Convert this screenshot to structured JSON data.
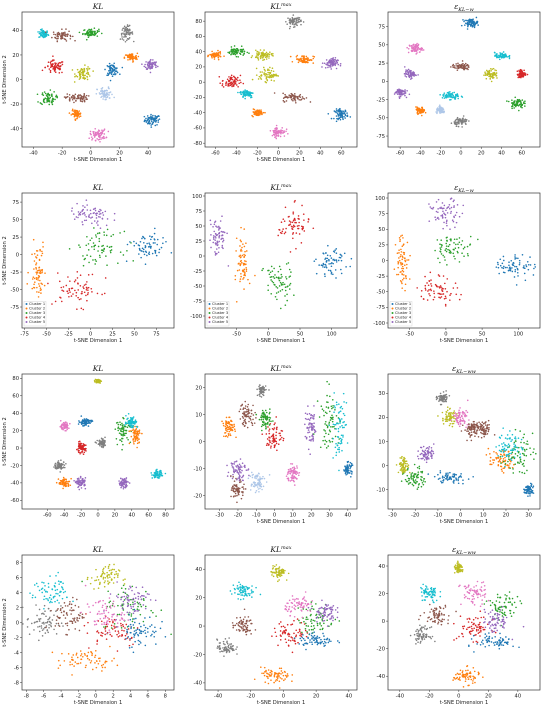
{
  "colors": [
    "#1f77b4",
    "#ff7f0e",
    "#2ca02c",
    "#d62728",
    "#9467bd",
    "#8c564b",
    "#e377c2",
    "#7f7f7f",
    "#bcbd22",
    "#17becf",
    "#aec7e8",
    "#ffbb78"
  ],
  "chart_data": [
    {
      "type": "scatter",
      "title": "KL",
      "xlabel": "t-SNE Dimension 1",
      "ylabel": "t-SNE Dimension 2",
      "xlim": [
        -48,
        58
      ],
      "ylim": [
        -55,
        55
      ],
      "xticks": [
        -40,
        -20,
        0,
        20,
        40
      ],
      "yticks": [
        -40,
        -20,
        0,
        20,
        40
      ],
      "legend": [],
      "legend_position": "none",
      "grid": false,
      "clusters": [
        [
          43,
          -33,
          5,
          4,
          0
        ],
        [
          -33,
          37,
          3,
          3,
          9
        ],
        [
          -20,
          36,
          6,
          4,
          5
        ],
        [
          0,
          38,
          5,
          3,
          2
        ],
        [
          25,
          38,
          4,
          5,
          7
        ],
        [
          -25,
          10,
          6,
          5,
          3
        ],
        [
          -5,
          5,
          5,
          5,
          8
        ],
        [
          15,
          8,
          4,
          4,
          0
        ],
        [
          28,
          18,
          4,
          3,
          1
        ],
        [
          42,
          12,
          4,
          4,
          4
        ],
        [
          -30,
          -15,
          5,
          5,
          2
        ],
        [
          -10,
          -15,
          7,
          3,
          5
        ],
        [
          10,
          -12,
          5,
          5,
          10
        ],
        [
          5,
          -45,
          5,
          4,
          6
        ],
        [
          -10,
          -28,
          3,
          3,
          1
        ]
      ]
    },
    {
      "type": "scatter",
      "title": "KL^max",
      "xlabel": "t-SNE Dimension 1",
      "ylabel": "",
      "xlim": [
        -70,
        75
      ],
      "ylim": [
        -85,
        92
      ],
      "xticks": [
        -60,
        -40,
        -20,
        0,
        20,
        40,
        60
      ],
      "yticks": [
        -80,
        -60,
        -40,
        -20,
        0,
        20,
        40,
        60,
        80
      ],
      "legend": [],
      "legend_position": "none",
      "grid": false,
      "clusters": [
        [
          60,
          -42,
          6,
          6,
          0
        ],
        [
          15,
          80,
          6,
          6,
          7
        ],
        [
          -40,
          40,
          8,
          5,
          2
        ],
        [
          -60,
          35,
          5,
          4,
          1
        ],
        [
          -15,
          35,
          8,
          5,
          8
        ],
        [
          25,
          30,
          8,
          5,
          1
        ],
        [
          50,
          25,
          6,
          6,
          4
        ],
        [
          -45,
          0,
          8,
          8,
          3
        ],
        [
          -10,
          10,
          8,
          8,
          8
        ],
        [
          -30,
          -15,
          6,
          5,
          9
        ],
        [
          15,
          -20,
          10,
          5,
          5
        ],
        [
          0,
          -65,
          6,
          6,
          6
        ],
        [
          -20,
          -40,
          5,
          4,
          1
        ]
      ]
    },
    {
      "type": "scatter",
      "title": "ε_KL−w",
      "xlabel": "",
      "ylabel": "",
      "xlim": [
        -72,
        78
      ],
      "ylim": [
        -90,
        95
      ],
      "xticks": [
        -60,
        -40,
        -20,
        0,
        20,
        40,
        60
      ],
      "yticks": [
        -75,
        -50,
        -25,
        0,
        25,
        50,
        75
      ],
      "legend": [],
      "legend_position": "none",
      "grid": false,
      "clusters": [
        [
          10,
          80,
          6,
          5,
          0
        ],
        [
          -45,
          45,
          6,
          6,
          6
        ],
        [
          -50,
          10,
          5,
          5,
          4
        ],
        [
          -60,
          -15,
          5,
          5,
          4
        ],
        [
          0,
          20,
          8,
          4,
          5
        ],
        [
          40,
          35,
          6,
          4,
          9
        ],
        [
          30,
          10,
          6,
          6,
          8
        ],
        [
          60,
          10,
          4,
          5,
          3
        ],
        [
          55,
          -30,
          6,
          6,
          2
        ],
        [
          -10,
          -20,
          8,
          5,
          9
        ],
        [
          -40,
          -40,
          4,
          4,
          1
        ],
        [
          0,
          -55,
          6,
          5,
          7
        ],
        [
          -20,
          -40,
          4,
          4,
          10
        ]
      ]
    },
    {
      "type": "scatter",
      "title": "KL",
      "xlabel": "t-SNE Dimension 1",
      "ylabel": "t-SNE Dimension 2",
      "xlim": [
        -78,
        95
      ],
      "ylim": [
        -105,
        88
      ],
      "xticks": [
        -75,
        -50,
        -25,
        0,
        25,
        50,
        75
      ],
      "yticks": [
        -75,
        -50,
        -25,
        0,
        25,
        50,
        75
      ],
      "legend": [
        "Cluster 1",
        "Cluster 2",
        "Cluster 3",
        "Cluster 4",
        "Cluster 5"
      ],
      "legend_position": "lower-left",
      "grid": false,
      "clusters": [
        [
          0,
          55,
          22,
          16,
          4
        ],
        [
          -60,
          -20,
          8,
          35,
          1
        ],
        [
          10,
          10,
          22,
          20,
          2
        ],
        [
          -15,
          -50,
          25,
          22,
          3
        ],
        [
          65,
          10,
          18,
          18,
          0
        ]
      ]
    },
    {
      "type": "scatter",
      "title": "KL^max",
      "xlabel": "t-SNE Dimension 1",
      "ylabel": "",
      "xlim": [
        -100,
        140
      ],
      "ylim": [
        -120,
        105
      ],
      "xticks": [
        -50,
        0,
        50,
        100
      ],
      "yticks": [
        -100,
        -75,
        -50,
        -25,
        0,
        25,
        50,
        75,
        100
      ],
      "legend": [
        "Cluster 1",
        "Cluster 2",
        "Cluster 3",
        "Cluster 4",
        "Cluster 5"
      ],
      "legend_position": "lower-left",
      "grid": false,
      "clusters": [
        [
          -80,
          30,
          12,
          28,
          4
        ],
        [
          -40,
          -10,
          8,
          45,
          1
        ],
        [
          40,
          50,
          22,
          28,
          3
        ],
        [
          15,
          -45,
          20,
          32,
          2
        ],
        [
          100,
          -10,
          22,
          20,
          0
        ]
      ]
    },
    {
      "type": "scatter",
      "title": "ε_KL−w",
      "xlabel": "t-SNE Dimension 1",
      "ylabel": "",
      "xlim": [
        -80,
        130
      ],
      "ylim": [
        -108,
        108
      ],
      "xticks": [
        -50,
        0,
        50,
        100
      ],
      "yticks": [
        -100,
        -75,
        -50,
        -25,
        0,
        25,
        50,
        75,
        100
      ],
      "legend": [
        "Cluster 1",
        "Cluster 2",
        "Cluster 3",
        "Cluster 4",
        "Cluster 5"
      ],
      "legend_position": "lower-left",
      "grid": false,
      "clusters": [
        [
          0,
          75,
          20,
          20,
          4
        ],
        [
          -60,
          0,
          8,
          38,
          1
        ],
        [
          10,
          20,
          25,
          18,
          2
        ],
        [
          -10,
          -45,
          25,
          20,
          3
        ],
        [
          95,
          -10,
          25,
          18,
          0
        ]
      ]
    },
    {
      "type": "scatter",
      "title": "KL",
      "xlabel": "",
      "ylabel": "t-SNE Dimension 2",
      "xlim": [
        -90,
        90
      ],
      "ylim": [
        -70,
        85
      ],
      "xticks": [
        -60,
        -40,
        -20,
        0,
        20,
        40,
        60,
        80
      ],
      "yticks": [
        -60,
        -40,
        -20,
        0,
        20,
        40,
        60,
        80
      ],
      "legend": [],
      "legend_position": "none",
      "grid": false,
      "clusters": [
        [
          0,
          77,
          3,
          2,
          8
        ],
        [
          -15,
          30,
          7,
          4,
          0
        ],
        [
          -40,
          25,
          5,
          4,
          6
        ],
        [
          -20,
          0,
          5,
          5,
          3
        ],
        [
          30,
          20,
          8,
          12,
          2
        ],
        [
          45,
          15,
          6,
          10,
          1
        ],
        [
          40,
          30,
          6,
          6,
          9
        ],
        [
          -45,
          -20,
          6,
          4,
          7
        ],
        [
          -40,
          -40,
          6,
          5,
          1
        ],
        [
          -20,
          -40,
          5,
          5,
          4
        ],
        [
          30,
          -40,
          5,
          5,
          4
        ],
        [
          70,
          -30,
          5,
          4,
          9
        ],
        [
          5,
          5,
          5,
          4,
          7
        ]
      ]
    },
    {
      "type": "scatter",
      "title": "KL^max",
      "xlabel": "t-SNE Dimension 1",
      "ylabel": "",
      "xlim": [
        -38,
        45
      ],
      "ylim": [
        -25,
        25
      ],
      "xticks": [
        -30,
        -20,
        -10,
        0,
        10,
        20,
        30,
        40
      ],
      "yticks": [
        -20,
        -10,
        0,
        10,
        20
      ],
      "legend": [],
      "legend_position": "none",
      "grid": false,
      "clusters": [
        [
          -7,
          19,
          2,
          2,
          7
        ],
        [
          -25,
          5,
          3,
          3,
          1
        ],
        [
          -15,
          10,
          4,
          4,
          5
        ],
        [
          0,
          2,
          4,
          5,
          3
        ],
        [
          -5,
          8,
          3,
          3,
          2
        ],
        [
          20,
          5,
          3,
          6,
          4
        ],
        [
          30,
          8,
          5,
          10,
          2
        ],
        [
          35,
          5,
          4,
          10,
          9
        ],
        [
          -20,
          -10,
          4,
          4,
          4
        ],
        [
          -10,
          -15,
          4,
          4,
          10
        ],
        [
          10,
          -12,
          3,
          3,
          6
        ],
        [
          -20,
          -18,
          3,
          3,
          5
        ],
        [
          40,
          -10,
          2,
          2,
          0
        ]
      ]
    },
    {
      "type": "scatter",
      "title": "ε_KL−ww",
      "xlabel": "t-SNE Dimension 1",
      "ylabel": "",
      "xlim": [
        -32,
        35
      ],
      "ylim": [
        -18,
        38
      ],
      "xticks": [
        -30,
        -20,
        -10,
        0,
        10,
        20,
        30
      ],
      "yticks": [
        -10,
        0,
        10,
        20,
        30
      ],
      "legend": [],
      "legend_position": "none",
      "grid": false,
      "clusters": [
        [
          -8,
          28,
          2,
          2,
          7
        ],
        [
          -5,
          20,
          3,
          3,
          8
        ],
        [
          0,
          20,
          3,
          3,
          6
        ],
        [
          5,
          15,
          3,
          3,
          5
        ],
        [
          -5,
          -5,
          7,
          2,
          0
        ],
        [
          18,
          2,
          5,
          4,
          1
        ],
        [
          25,
          5,
          6,
          7,
          2
        ],
        [
          22,
          8,
          5,
          6,
          9
        ],
        [
          -15,
          5,
          3,
          3,
          4
        ],
        [
          -20,
          -5,
          4,
          4,
          2
        ],
        [
          -25,
          0,
          2,
          3,
          8
        ],
        [
          30,
          -10,
          2,
          2,
          0
        ],
        [
          10,
          15,
          3,
          3,
          5
        ]
      ]
    },
    {
      "type": "scatter",
      "title": "KL",
      "xlabel": "t-SNE Dimension 1",
      "ylabel": "t-SNE Dimension 2",
      "xlim": [
        -8.5,
        9
      ],
      "ylim": [
        -9,
        9
      ],
      "xticks": [
        -8,
        -6,
        -4,
        -2,
        0,
        2,
        4,
        6,
        8
      ],
      "yticks": [
        -8,
        -6,
        -4,
        -2,
        0,
        2,
        4,
        6,
        8
      ],
      "legend": [],
      "legend_position": "none",
      "grid": false,
      "clusters": [
        [
          -5,
          4,
          2,
          2,
          9
        ],
        [
          1,
          6,
          1.5,
          1.5,
          8
        ],
        [
          -6,
          0,
          1.8,
          2,
          7
        ],
        [
          -3,
          1,
          1.5,
          2,
          5
        ],
        [
          2,
          -1,
          3,
          2,
          3
        ],
        [
          4,
          2,
          3,
          3,
          2
        ],
        [
          5,
          -1,
          2,
          2,
          0
        ],
        [
          4,
          3,
          2,
          2,
          4
        ],
        [
          -1,
          -5,
          3,
          1.2,
          1
        ],
        [
          1,
          1,
          2,
          2,
          6
        ]
      ]
    },
    {
      "type": "scatter",
      "title": "KL^max",
      "xlabel": "t-SNE Dimension 1",
      "ylabel": "",
      "xlim": [
        -48,
        45
      ],
      "ylim": [
        -45,
        50
      ],
      "xticks": [
        -40,
        -20,
        0,
        20,
        40
      ],
      "yticks": [
        -40,
        -20,
        0,
        20,
        40
      ],
      "legend": [],
      "legend_position": "none",
      "grid": false,
      "clusters": [
        [
          -3,
          38,
          4,
          4,
          8
        ],
        [
          -25,
          25,
          6,
          5,
          9
        ],
        [
          -25,
          0,
          6,
          6,
          5
        ],
        [
          -35,
          -15,
          5,
          5,
          7
        ],
        [
          5,
          -5,
          10,
          8,
          3
        ],
        [
          20,
          5,
          10,
          10,
          2
        ],
        [
          25,
          10,
          6,
          6,
          4
        ],
        [
          20,
          -10,
          10,
          5,
          0
        ],
        [
          -5,
          -35,
          8,
          5,
          1
        ],
        [
          10,
          15,
          8,
          6,
          6
        ]
      ]
    },
    {
      "type": "scatter",
      "title": "ε_KL−ww",
      "xlabel": "t-SNE Dimension 1",
      "ylabel": "",
      "xlim": [
        -48,
        55
      ],
      "ylim": [
        -50,
        48
      ],
      "xticks": [
        -40,
        -20,
        0,
        20,
        40
      ],
      "yticks": [
        -40,
        -20,
        0,
        20,
        40
      ],
      "legend": [],
      "legend_position": "none",
      "grid": false,
      "clusters": [
        [
          0,
          38,
          3,
          3,
          8
        ],
        [
          -20,
          20,
          6,
          6,
          9
        ],
        [
          -15,
          5,
          8,
          6,
          5
        ],
        [
          -25,
          -10,
          5,
          5,
          7
        ],
        [
          10,
          -5,
          10,
          8,
          3
        ],
        [
          30,
          10,
          10,
          10,
          2
        ],
        [
          25,
          0,
          8,
          8,
          4
        ],
        [
          25,
          -15,
          12,
          5,
          0
        ],
        [
          5,
          -40,
          8,
          5,
          1
        ],
        [
          10,
          20,
          8,
          8,
          6
        ]
      ]
    }
  ]
}
